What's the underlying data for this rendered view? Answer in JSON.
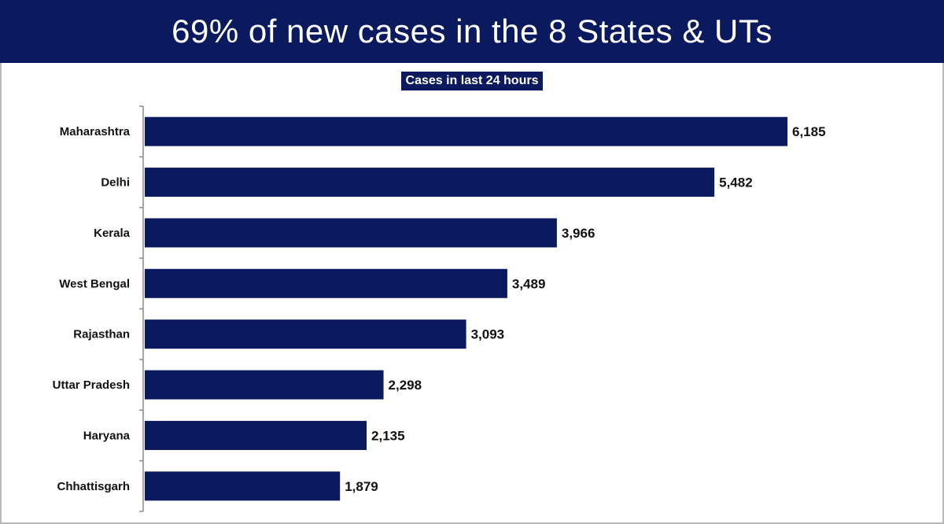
{
  "header": {
    "title": "69% of new cases in the 8 States & UTs"
  },
  "colors": {
    "bar": "#0b1a5e",
    "header_bg": "#0b1a5e"
  },
  "chart_data": {
    "type": "bar",
    "orientation": "horizontal",
    "title": "Cases in last 24 hours",
    "categories": [
      "Maharashtra",
      "Delhi",
      "Kerala",
      "West Bengal",
      "Rajasthan",
      "Uttar Pradesh",
      "Haryana",
      "Chhattisgarh"
    ],
    "values": [
      6185,
      5482,
      3966,
      3489,
      3093,
      2298,
      2135,
      1879
    ],
    "value_labels": [
      "6,185",
      "5,482",
      "3,966",
      "3,489",
      "3,093",
      "2,298",
      "2,135",
      "1,879"
    ],
    "xlim": [
      0,
      6185
    ],
    "grid": false,
    "legend": "none"
  }
}
